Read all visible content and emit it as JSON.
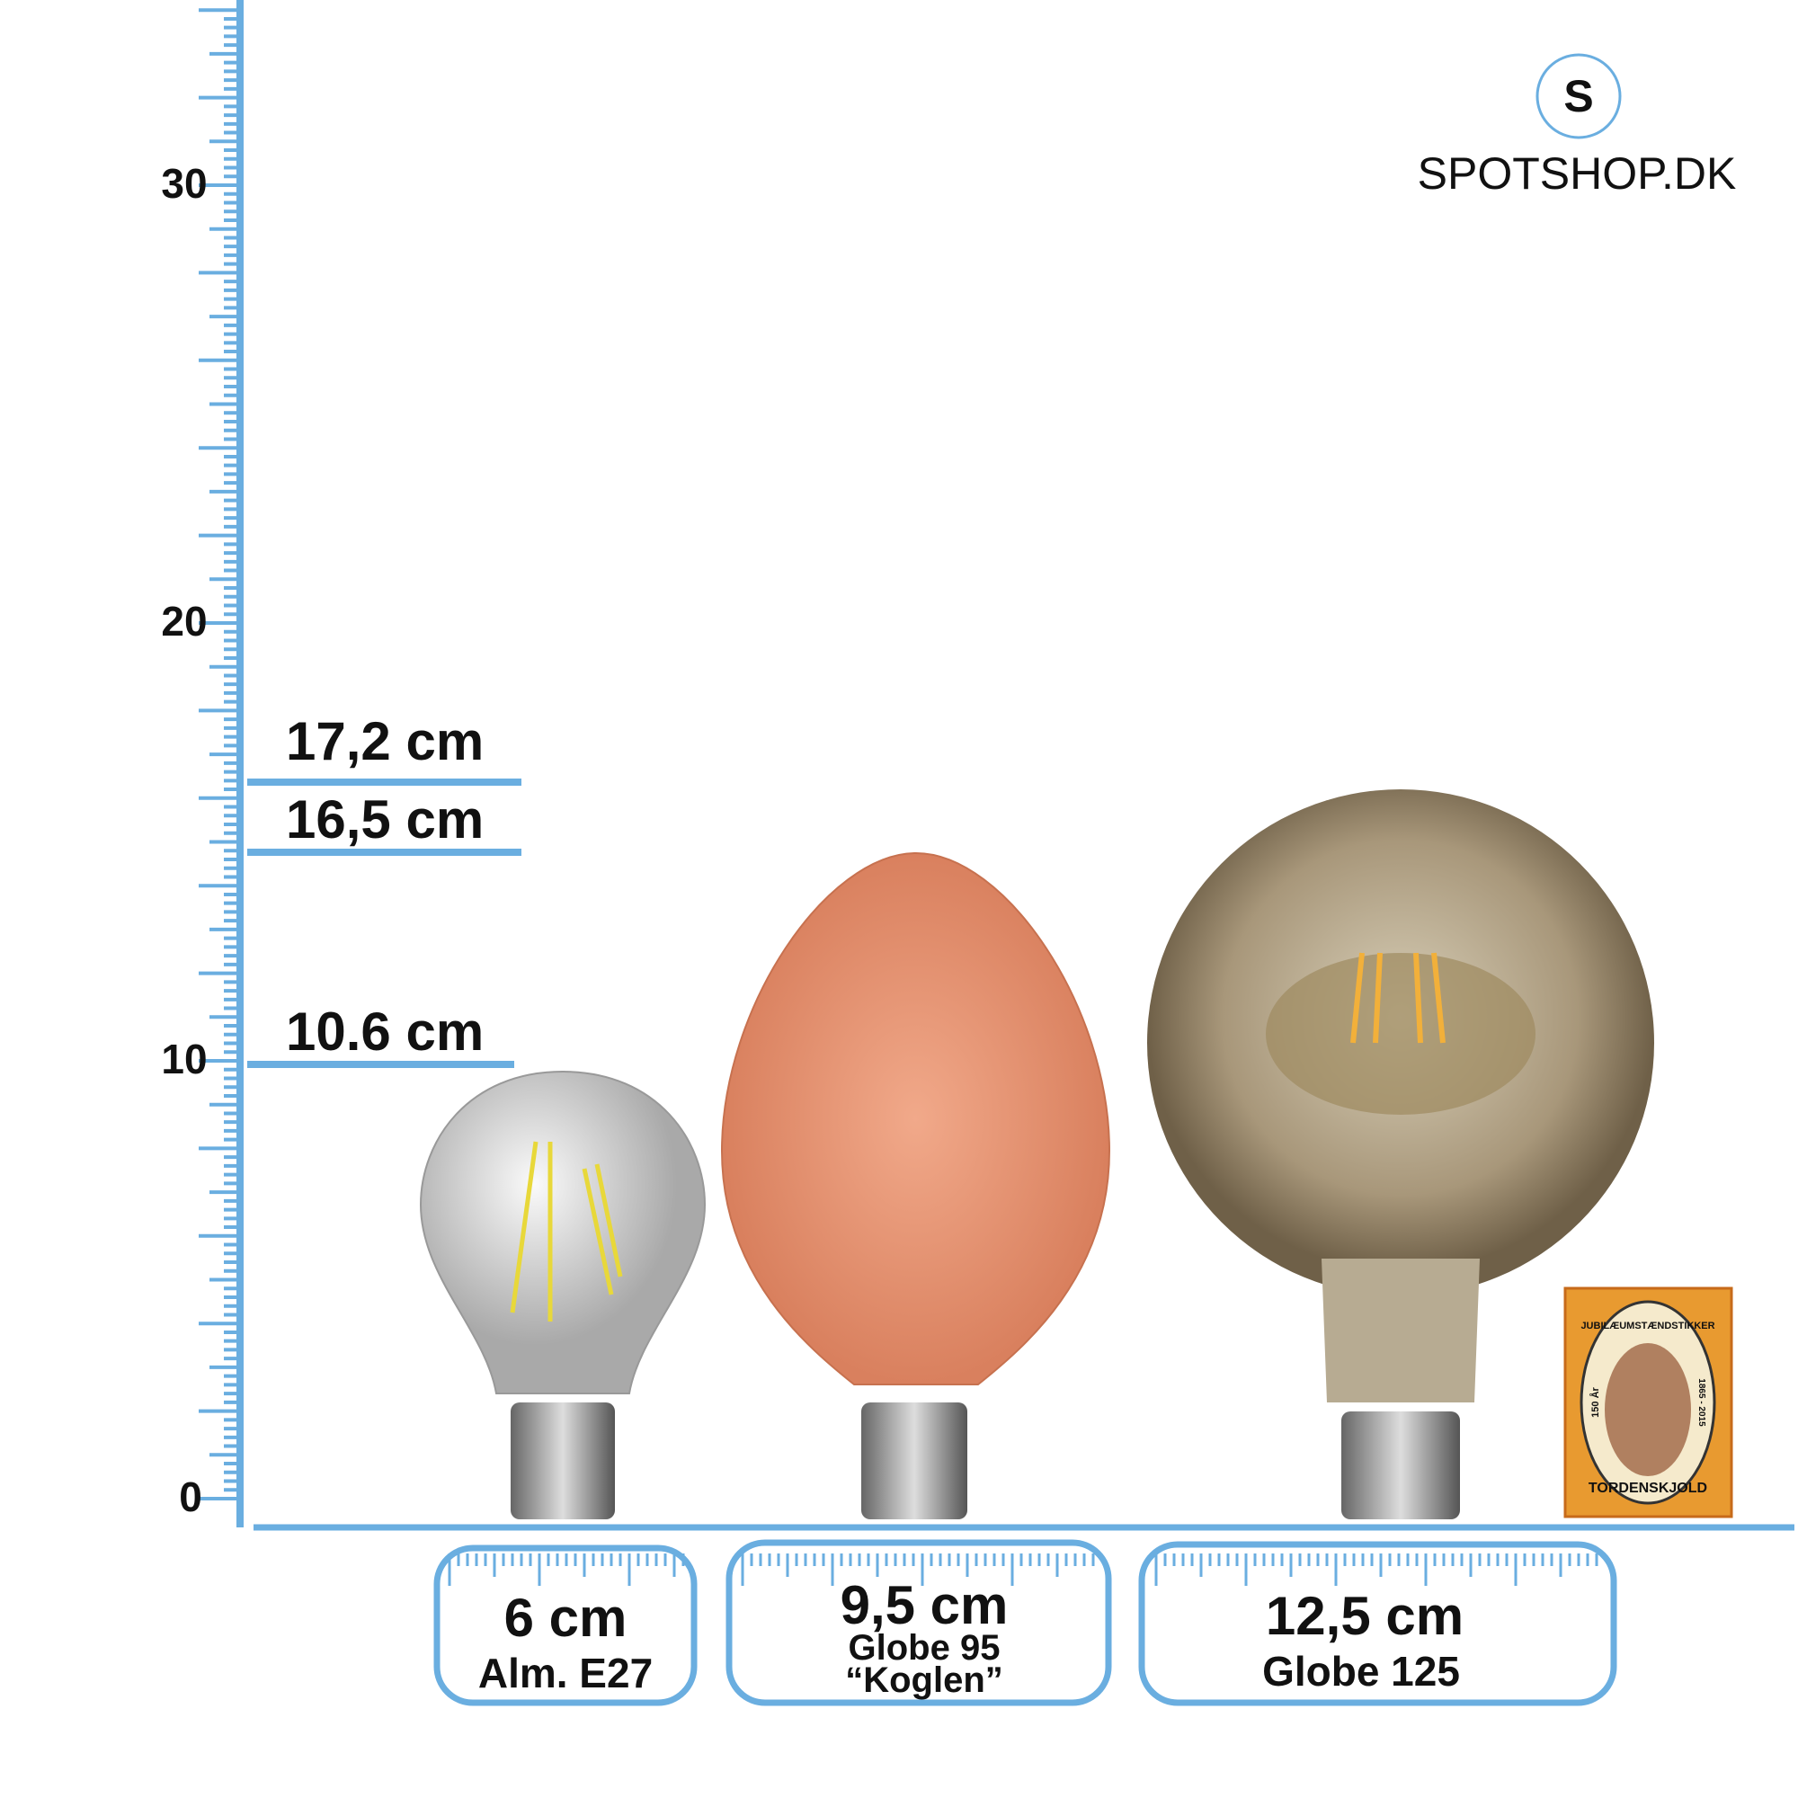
{
  "ruler": {
    "labels": [
      "30",
      "20",
      "10",
      "0"
    ]
  },
  "heights": [
    "17,2 cm",
    "16,5 cm",
    "10.6 cm"
  ],
  "widths": [
    {
      "size": "6 cm",
      "name": "Alm. E27"
    },
    {
      "size": "9,5 cm",
      "name": "Globe 95",
      "nick": "“Koglen”"
    },
    {
      "size": "12,5 cm",
      "name": "Globe 125"
    }
  ],
  "logo": {
    "letter": "S",
    "brand": "SPOTSHOP.DK"
  },
  "matchbox": {
    "top": "JUBILÆUMSTÆNDSTIKKER",
    "left": "150 År",
    "right": "1865 - 2015",
    "bottom": "TORDENSKJOLD"
  }
}
